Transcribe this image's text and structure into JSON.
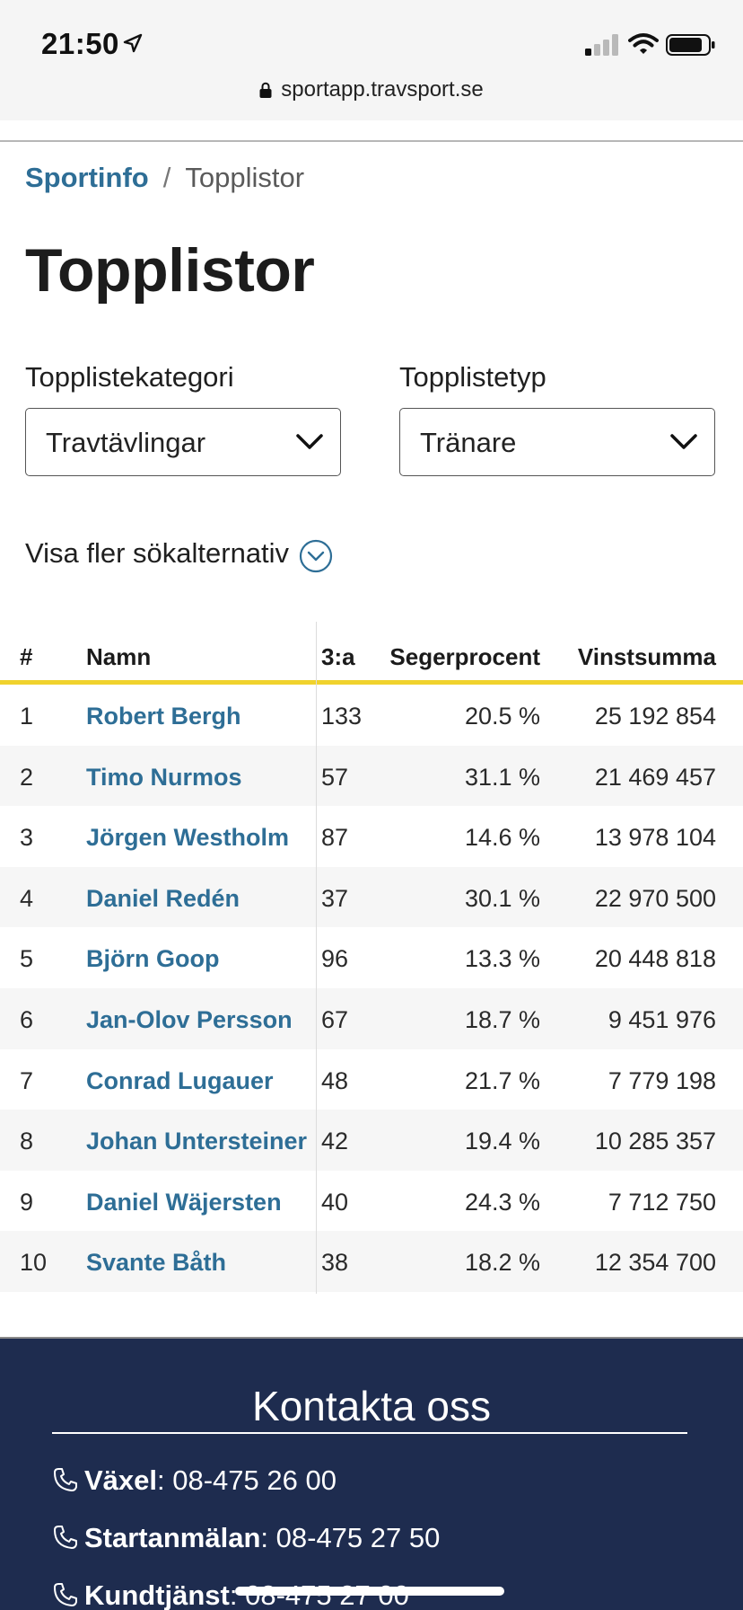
{
  "status_bar": {
    "time": "21:50",
    "url": "sportapp.travsport.se"
  },
  "breadcrumb": {
    "link": "Sportinfo",
    "separator": "/",
    "current": "Topplistor"
  },
  "page_title": "Topplistor",
  "filters": {
    "category_label": "Topplistekategori",
    "category_value": "Travtävlingar",
    "type_label": "Topplistetyp",
    "type_value": "Tränare",
    "more_options": "Visa fler sökalternativ"
  },
  "table": {
    "headers": {
      "rank": "#",
      "name": "Namn",
      "third": "3:a",
      "pct": "Segerprocent",
      "sum": "Vinstsumma"
    },
    "rows": [
      {
        "rank": "1",
        "name": "Robert Bergh",
        "third": "133",
        "pct": "20.5 %",
        "sum": "25 192 854"
      },
      {
        "rank": "2",
        "name": "Timo Nurmos",
        "third": "57",
        "pct": "31.1 %",
        "sum": "21 469 457"
      },
      {
        "rank": "3",
        "name": "Jörgen Westholm",
        "third": "87",
        "pct": "14.6 %",
        "sum": "13 978 104"
      },
      {
        "rank": "4",
        "name": "Daniel Redén",
        "third": "37",
        "pct": "30.1 %",
        "sum": "22 970 500"
      },
      {
        "rank": "5",
        "name": "Björn Goop",
        "third": "96",
        "pct": "13.3 %",
        "sum": "20 448 818"
      },
      {
        "rank": "6",
        "name": "Jan-Olov Persson",
        "third": "67",
        "pct": "18.7 %",
        "sum": "9 451 976"
      },
      {
        "rank": "7",
        "name": "Conrad Lugauer",
        "third": "48",
        "pct": "21.7 %",
        "sum": "7 779 198"
      },
      {
        "rank": "8",
        "name": "Johan Untersteiner",
        "third": "42",
        "pct": "19.4 %",
        "sum": "10 285 357"
      },
      {
        "rank": "9",
        "name": "Daniel Wäjersten",
        "third": "40",
        "pct": "24.3 %",
        "sum": "7 712 750"
      },
      {
        "rank": "10",
        "name": "Svante Båth",
        "third": "38",
        "pct": "18.2 %",
        "sum": "12 354 700"
      }
    ]
  },
  "footer": {
    "title": "Kontakta oss",
    "contacts": [
      {
        "label": "Växel",
        "number": "08-475 26 00"
      },
      {
        "label": "Startanmälan",
        "number": "08-475 27 50"
      },
      {
        "label": "Kundtjänst",
        "number": "08-475 27 00"
      }
    ]
  },
  "colors": {
    "link": "#2e6e96",
    "header_underline": "#f0d22d",
    "footer_bg": "#1e2c4f"
  }
}
